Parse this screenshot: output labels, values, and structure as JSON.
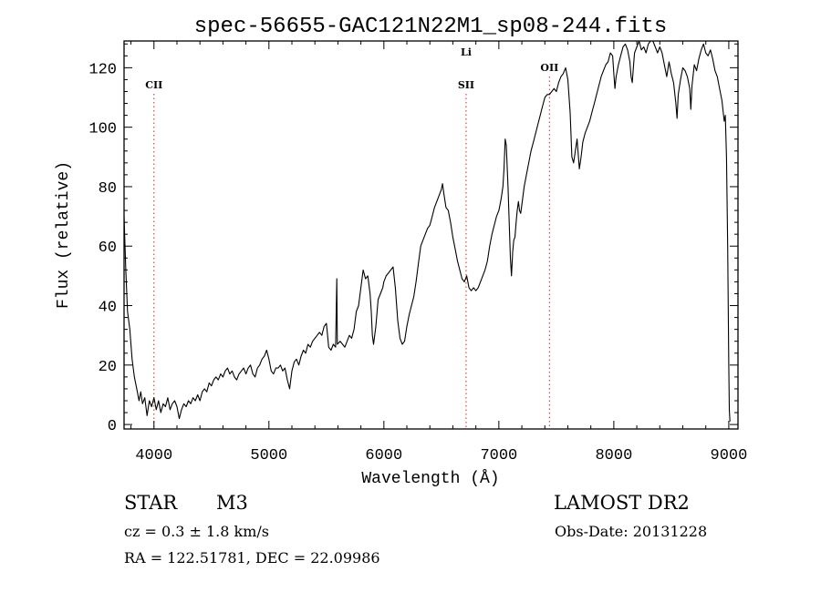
{
  "chart_data": {
    "type": "line",
    "title": "spec-56655-GAC121N22M1_sp08-244.fits",
    "xlabel": "Wavelength (Å)",
    "ylabel": "Flux (relative)",
    "xlim": [
      3740,
      9080
    ],
    "ylim": [
      -1.5,
      129
    ],
    "xticks": [
      4000,
      5000,
      6000,
      7000,
      8000,
      9000
    ],
    "yticks": [
      0,
      20,
      40,
      60,
      80,
      100,
      120
    ],
    "grid": false,
    "line_color": "#000000",
    "lines": [
      {
        "label": "CII",
        "wavelength": 4000
      },
      {
        "label": "SII",
        "wavelength": 6715
      },
      {
        "label": "Li",
        "wavelength": 6715
      },
      {
        "label": "OII",
        "wavelength": 7440
      }
    ],
    "line_marker_color": "#d62020",
    "series": [
      {
        "points": [
          [
            3740,
            70
          ],
          [
            3755,
            52
          ],
          [
            3770,
            38
          ],
          [
            3790,
            32
          ],
          [
            3810,
            22
          ],
          [
            3830,
            16
          ],
          [
            3850,
            12
          ],
          [
            3870,
            8
          ],
          [
            3885,
            11
          ],
          [
            3900,
            7
          ],
          [
            3920,
            9
          ],
          [
            3940,
            3
          ],
          [
            3960,
            8
          ],
          [
            3980,
            6
          ],
          [
            4000,
            9
          ],
          [
            4020,
            5
          ],
          [
            4040,
            8
          ],
          [
            4060,
            4
          ],
          [
            4080,
            7
          ],
          [
            4100,
            6
          ],
          [
            4120,
            9
          ],
          [
            4140,
            5
          ],
          [
            4160,
            7
          ],
          [
            4180,
            8
          ],
          [
            4200,
            6
          ],
          [
            4220,
            2
          ],
          [
            4240,
            5
          ],
          [
            4260,
            7
          ],
          [
            4280,
            6
          ],
          [
            4300,
            8
          ],
          [
            4320,
            7
          ],
          [
            4340,
            9
          ],
          [
            4360,
            8
          ],
          [
            4380,
            10
          ],
          [
            4400,
            8
          ],
          [
            4420,
            11
          ],
          [
            4440,
            12
          ],
          [
            4460,
            11
          ],
          [
            4480,
            14
          ],
          [
            4500,
            13
          ],
          [
            4520,
            15
          ],
          [
            4540,
            16
          ],
          [
            4560,
            15
          ],
          [
            4580,
            17
          ],
          [
            4600,
            16
          ],
          [
            4620,
            18
          ],
          [
            4640,
            19
          ],
          [
            4660,
            17
          ],
          [
            4680,
            18
          ],
          [
            4700,
            16
          ],
          [
            4720,
            15
          ],
          [
            4740,
            17
          ],
          [
            4760,
            18
          ],
          [
            4780,
            19
          ],
          [
            4800,
            17
          ],
          [
            4820,
            19
          ],
          [
            4840,
            20
          ],
          [
            4860,
            17
          ],
          [
            4880,
            16
          ],
          [
            4900,
            19
          ],
          [
            4920,
            20
          ],
          [
            4940,
            22
          ],
          [
            4960,
            23
          ],
          [
            4980,
            25
          ],
          [
            5000,
            22
          ],
          [
            5020,
            18
          ],
          [
            5040,
            17
          ],
          [
            5060,
            19
          ],
          [
            5080,
            19
          ],
          [
            5100,
            20
          ],
          [
            5120,
            18
          ],
          [
            5140,
            19
          ],
          [
            5160,
            15
          ],
          [
            5180,
            12
          ],
          [
            5200,
            18
          ],
          [
            5220,
            21
          ],
          [
            5240,
            22
          ],
          [
            5260,
            20
          ],
          [
            5280,
            23
          ],
          [
            5300,
            25
          ],
          [
            5320,
            24
          ],
          [
            5340,
            27
          ],
          [
            5360,
            26
          ],
          [
            5380,
            28
          ],
          [
            5400,
            29
          ],
          [
            5420,
            30
          ],
          [
            5440,
            31
          ],
          [
            5460,
            30
          ],
          [
            5480,
            33
          ],
          [
            5500,
            34
          ],
          [
            5510,
            30
          ],
          [
            5520,
            26
          ],
          [
            5540,
            25
          ],
          [
            5560,
            27
          ],
          [
            5580,
            26
          ],
          [
            5590,
            49
          ],
          [
            5595,
            27
          ],
          [
            5620,
            28
          ],
          [
            5640,
            27
          ],
          [
            5660,
            26
          ],
          [
            5680,
            28
          ],
          [
            5700,
            30
          ],
          [
            5720,
            29
          ],
          [
            5740,
            32
          ],
          [
            5760,
            38
          ],
          [
            5780,
            40
          ],
          [
            5800,
            46
          ],
          [
            5820,
            52
          ],
          [
            5840,
            49
          ],
          [
            5860,
            50
          ],
          [
            5880,
            44
          ],
          [
            5890,
            38
          ],
          [
            5900,
            30
          ],
          [
            5910,
            27
          ],
          [
            5930,
            33
          ],
          [
            5950,
            42
          ],
          [
            5970,
            44
          ],
          [
            5990,
            46
          ],
          [
            6000,
            48
          ],
          [
            6020,
            50
          ],
          [
            6040,
            51
          ],
          [
            6060,
            52
          ],
          [
            6080,
            53
          ],
          [
            6100,
            46
          ],
          [
            6120,
            35
          ],
          [
            6140,
            29
          ],
          [
            6160,
            27
          ],
          [
            6180,
            28
          ],
          [
            6200,
            33
          ],
          [
            6220,
            37
          ],
          [
            6240,
            40
          ],
          [
            6260,
            43
          ],
          [
            6280,
            48
          ],
          [
            6300,
            54
          ],
          [
            6320,
            60
          ],
          [
            6340,
            62
          ],
          [
            6360,
            64
          ],
          [
            6380,
            66
          ],
          [
            6400,
            67
          ],
          [
            6420,
            70
          ],
          [
            6440,
            73
          ],
          [
            6460,
            75
          ],
          [
            6480,
            77
          ],
          [
            6500,
            79
          ],
          [
            6510,
            81
          ],
          [
            6520,
            78
          ],
          [
            6540,
            73
          ],
          [
            6560,
            72
          ],
          [
            6580,
            68
          ],
          [
            6600,
            63
          ],
          [
            6620,
            59
          ],
          [
            6640,
            55
          ],
          [
            6660,
            52
          ],
          [
            6680,
            49
          ],
          [
            6700,
            48
          ],
          [
            6720,
            50
          ],
          [
            6740,
            46
          ],
          [
            6760,
            45
          ],
          [
            6780,
            46
          ],
          [
            6800,
            45
          ],
          [
            6820,
            46
          ],
          [
            6840,
            48
          ],
          [
            6860,
            50
          ],
          [
            6880,
            52
          ],
          [
            6900,
            55
          ],
          [
            6920,
            60
          ],
          [
            6940,
            64
          ],
          [
            6960,
            67
          ],
          [
            6980,
            70
          ],
          [
            7000,
            72
          ],
          [
            7020,
            76
          ],
          [
            7035,
            80
          ],
          [
            7045,
            86
          ],
          [
            7055,
            96
          ],
          [
            7065,
            94
          ],
          [
            7080,
            80
          ],
          [
            7090,
            68
          ],
          [
            7100,
            56
          ],
          [
            7110,
            50
          ],
          [
            7120,
            58
          ],
          [
            7130,
            62
          ],
          [
            7140,
            63
          ],
          [
            7150,
            68
          ],
          [
            7160,
            72
          ],
          [
            7170,
            75
          ],
          [
            7180,
            72
          ],
          [
            7190,
            71
          ],
          [
            7200,
            74
          ],
          [
            7220,
            80
          ],
          [
            7240,
            84
          ],
          [
            7260,
            88
          ],
          [
            7280,
            92
          ],
          [
            7300,
            95
          ],
          [
            7320,
            98
          ],
          [
            7340,
            101
          ],
          [
            7360,
            104
          ],
          [
            7380,
            107
          ],
          [
            7400,
            110
          ],
          [
            7420,
            111
          ],
          [
            7440,
            111
          ],
          [
            7460,
            112
          ],
          [
            7480,
            113
          ],
          [
            7500,
            112
          ],
          [
            7520,
            115
          ],
          [
            7540,
            117
          ],
          [
            7560,
            118
          ],
          [
            7580,
            120
          ],
          [
            7600,
            116
          ],
          [
            7620,
            105
          ],
          [
            7635,
            90
          ],
          [
            7650,
            88
          ],
          [
            7665,
            92
          ],
          [
            7680,
            96
          ],
          [
            7700,
            86
          ],
          [
            7715,
            90
          ],
          [
            7730,
            95
          ],
          [
            7750,
            98
          ],
          [
            7770,
            100
          ],
          [
            7790,
            102
          ],
          [
            7810,
            105
          ],
          [
            7830,
            108
          ],
          [
            7850,
            111
          ],
          [
            7870,
            114
          ],
          [
            7890,
            117
          ],
          [
            7910,
            119
          ],
          [
            7930,
            121
          ],
          [
            7950,
            122
          ],
          [
            7970,
            125
          ],
          [
            7990,
            124
          ],
          [
            8000,
            118
          ],
          [
            8010,
            113
          ],
          [
            8020,
            117
          ],
          [
            8040,
            121
          ],
          [
            8060,
            124
          ],
          [
            8080,
            127
          ],
          [
            8100,
            128
          ],
          [
            8120,
            126
          ],
          [
            8140,
            122
          ],
          [
            8150,
            117
          ],
          [
            8160,
            115
          ],
          [
            8170,
            120
          ],
          [
            8180,
            125
          ],
          [
            8200,
            127
          ],
          [
            8220,
            129
          ],
          [
            8240,
            126
          ],
          [
            8260,
            127
          ],
          [
            8280,
            125
          ],
          [
            8300,
            128
          ],
          [
            8320,
            130
          ],
          [
            8340,
            129
          ],
          [
            8360,
            127
          ],
          [
            8380,
            125
          ],
          [
            8400,
            127
          ],
          [
            8420,
            125
          ],
          [
            8440,
            121
          ],
          [
            8460,
            117
          ],
          [
            8480,
            122
          ],
          [
            8500,
            118
          ],
          [
            8520,
            115
          ],
          [
            8540,
            108
          ],
          [
            8550,
            103
          ],
          [
            8560,
            111
          ],
          [
            8580,
            116
          ],
          [
            8600,
            120
          ],
          [
            8620,
            119
          ],
          [
            8640,
            117
          ],
          [
            8660,
            113
          ],
          [
            8670,
            106
          ],
          [
            8680,
            114
          ],
          [
            8700,
            121
          ],
          [
            8720,
            119
          ],
          [
            8740,
            123
          ],
          [
            8760,
            126
          ],
          [
            8780,
            128
          ],
          [
            8800,
            125
          ],
          [
            8820,
            124
          ],
          [
            8840,
            126
          ],
          [
            8860,
            123
          ],
          [
            8880,
            119
          ],
          [
            8900,
            117
          ],
          [
            8920,
            113
          ],
          [
            8940,
            109
          ],
          [
            8960,
            102
          ],
          [
            8970,
            104
          ],
          [
            8980,
            90
          ],
          [
            8990,
            60
          ],
          [
            9000,
            20
          ],
          [
            9005,
            5
          ],
          [
            9010,
            1
          ]
        ]
      }
    ]
  },
  "info": {
    "object_class": "STAR",
    "subclass": "M3",
    "survey": "LAMOST DR2",
    "velocity": "cz = 0.3 ± 1.8 km/s",
    "obs_date": "Obs-Date: 20131228",
    "coords": "RA = 122.51781, DEC =  22.09986"
  }
}
